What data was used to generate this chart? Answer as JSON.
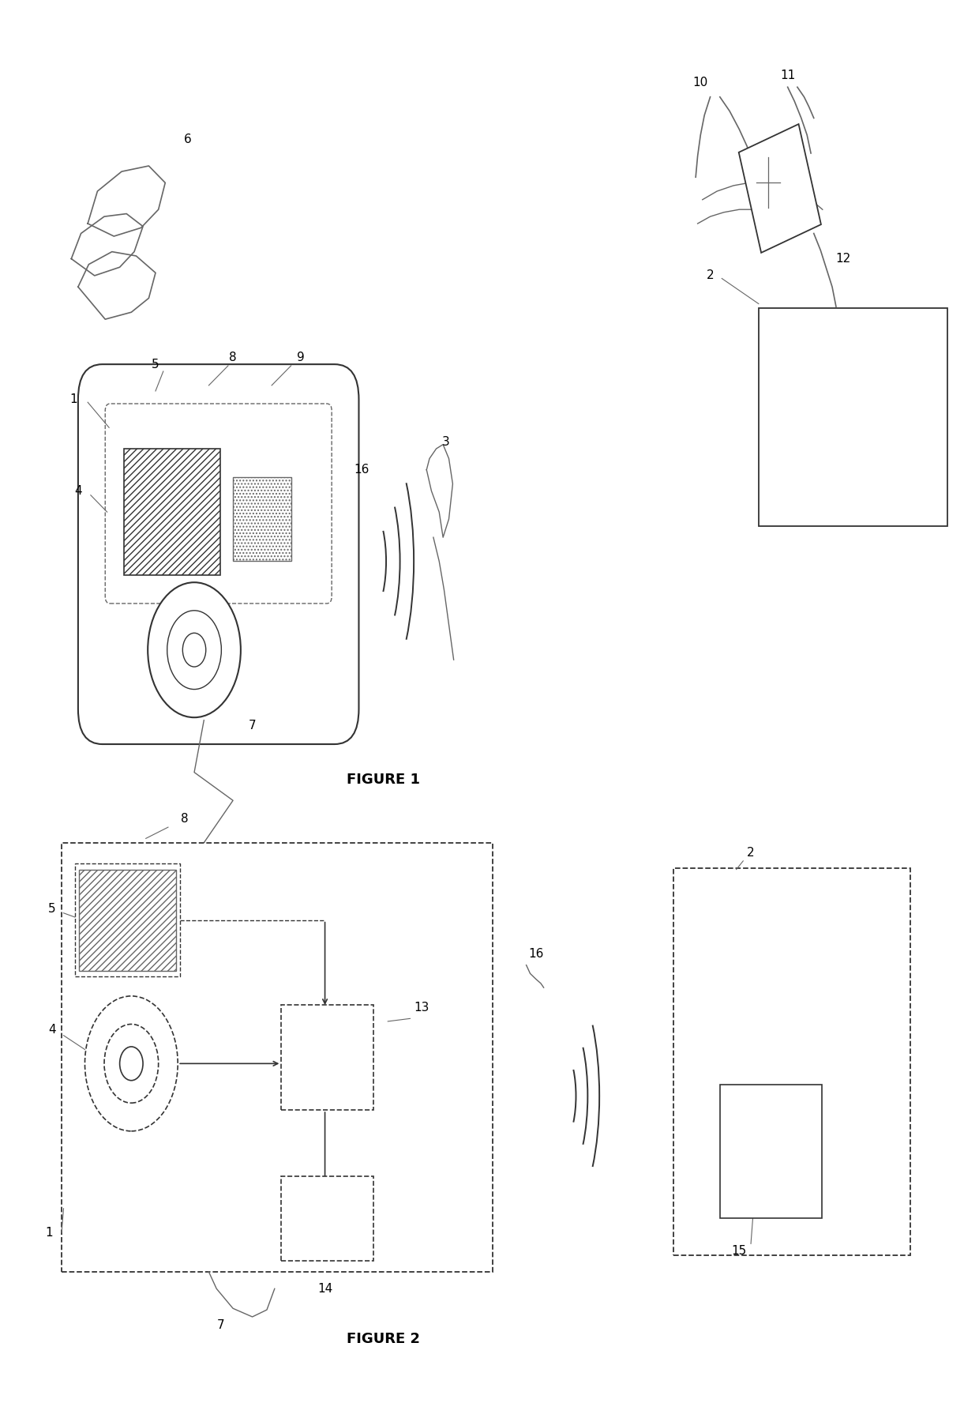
{
  "bg_color": "#ffffff",
  "fig_width": 12.4,
  "fig_height": 17.95,
  "figure1_label": "FIGURE 1",
  "figure2_label": "FIGURE 2"
}
